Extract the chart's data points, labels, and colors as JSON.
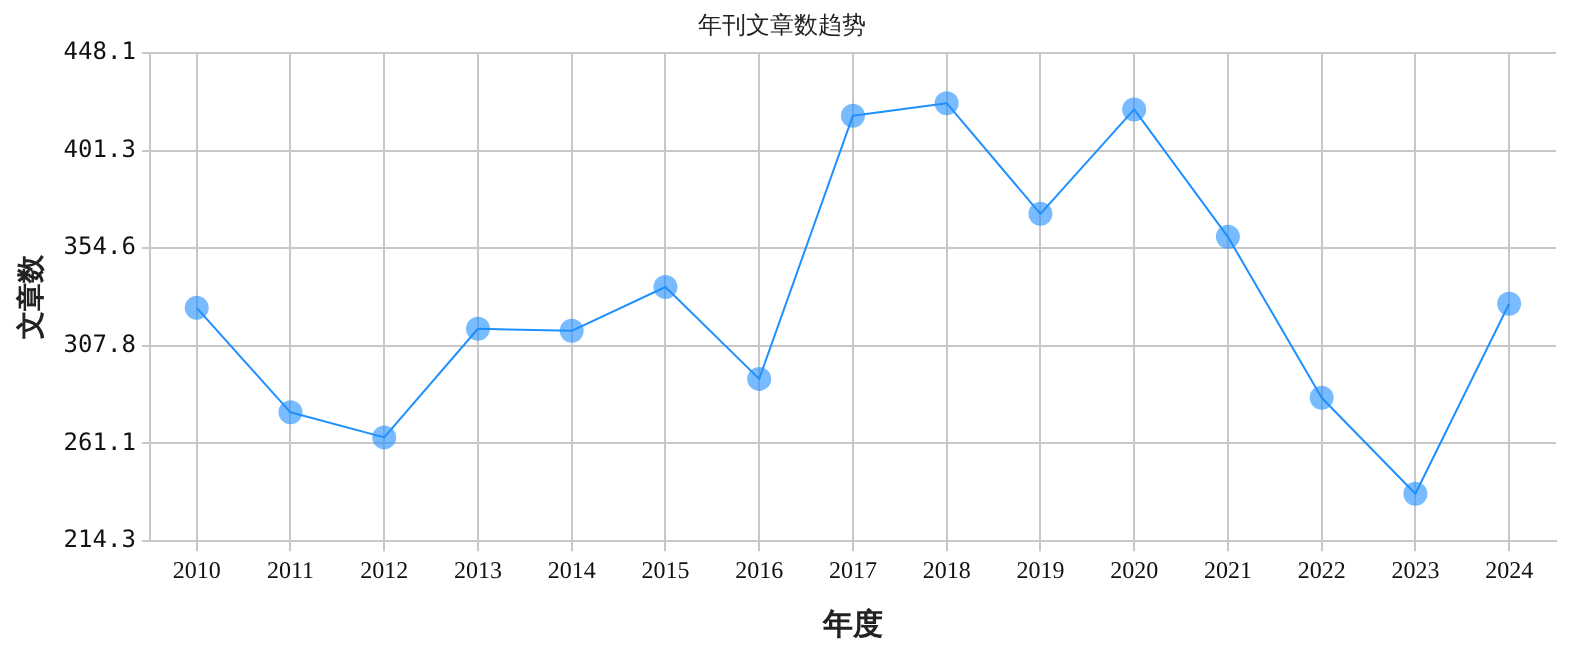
{
  "chart_data": {
    "type": "line",
    "title": "年刊文章数趋势",
    "xlabel": "年度",
    "ylabel": "文章数",
    "categories": [
      "2010",
      "2011",
      "2012",
      "2013",
      "2014",
      "2015",
      "2016",
      "2017",
      "2018",
      "2019",
      "2020",
      "2021",
      "2022",
      "2023",
      "2024"
    ],
    "series": [
      {
        "color": "#1e90ff",
        "values": [
          326,
          276,
          264,
          316,
          315,
          336,
          292,
          418,
          424,
          371,
          421,
          360,
          283,
          237,
          328
        ]
      }
    ],
    "ylim": [
      214.3,
      448.1
    ],
    "yticks": [
      214.3,
      261.1,
      307.8,
      354.6,
      401.3,
      448.1
    ],
    "grid": true,
    "legend": false,
    "marker": "circle",
    "line_style": "solid"
  }
}
